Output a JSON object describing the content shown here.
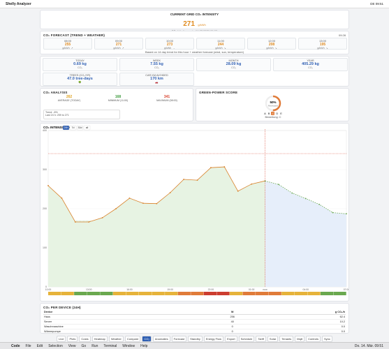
{
  "window": {
    "title": "Shelly Analyzer",
    "clock": "DE 09:51"
  },
  "header": {
    "title": "CURRENT GRID CO₂ INTENSITY",
    "value": 271,
    "unit": "g/kWh",
    "subtitle": "DE_LU · forecast · 14.03.2026 09:00"
  },
  "forecast": {
    "title": "CO₂ FORECAST (TREND + WEATHER)",
    "updated": "09:28",
    "unit": "g/kWh",
    "items": [
      {
        "time": "08:00",
        "value": 255,
        "trend": "↗"
      },
      {
        "time": "09:00",
        "value": 271,
        "trend": "↗"
      },
      {
        "time": "10:00",
        "value": 273,
        "trend": "→"
      },
      {
        "time": "11:00",
        "value": 244,
        "trend": "↘"
      },
      {
        "time": "12:00",
        "value": 208,
        "trend": "↘"
      },
      {
        "time": "13:00",
        "value": 195,
        "trend": "↘"
      }
    ],
    "note": "Based on 14 day trend for this hour + weather forecast (wind, sun, temperature)"
  },
  "stats": [
    {
      "label": "TODAY",
      "value": "0.69 kg",
      "sub": "CO₂"
    },
    {
      "label": "WEEK",
      "value": "7.55 kg",
      "sub": "CO₂"
    },
    {
      "label": "MONTH",
      "value": "28.09 kg",
      "sub": "CO₂"
    },
    {
      "label": "YEAR",
      "value": "405.29 kg",
      "sub": "CO₂"
    },
    {
      "label": "TREES (CO₂/YR)",
      "value": "47.0 tree-days",
      "sub": "🌳"
    },
    {
      "label": "CAR KM AVOIDED",
      "value": "170 km",
      "sub": "🚗"
    }
  ],
  "analysis": {
    "title": "CO₂ ANALYSIS",
    "items": [
      {
        "value": 262,
        "label": "AVERAGE (TODAY)",
        "color": "#e0a21e"
      },
      {
        "value": 168,
        "label": "MINIMUM (11:00)",
        "color": "#3c9a3c"
      },
      {
        "value": 341,
        "label": "MAXIMUM (08:00)",
        "color": "#d9442f"
      }
    ],
    "legend": [
      "Trend: -8%",
      "Last 24 h: 259 to 271"
    ]
  },
  "score": {
    "title": "GREEN-POWER SCORE",
    "value": 50,
    "value_label": "50%",
    "caption": "Renewable",
    "grades": [
      "A",
      "B",
      "C",
      "D",
      "E"
    ],
    "active": 2,
    "rating": "Bewertung: C"
  },
  "chart_data": {
    "type": "line",
    "title": "CO₂ INTENSITY DAY",
    "ranges": [
      "24h",
      "7d",
      "30d",
      "all"
    ],
    "active_range": 0,
    "categories": [
      "10:00",
      null,
      null,
      "13:00",
      null,
      null,
      "16:00",
      null,
      null,
      "19:00",
      null,
      null,
      "22:00",
      null,
      null,
      "01:00",
      "now",
      null,
      null,
      "04:00",
      null,
      null,
      "07:00"
    ],
    "series": [
      {
        "name": "Actual",
        "color": "#d9822b",
        "fill": "#e7f3e3",
        "values": [
          259,
          227,
          166,
          166,
          177,
          200,
          227,
          214,
          213,
          241,
          275,
          273,
          305,
          307,
          245,
          263,
          271,
          null,
          null,
          null,
          null,
          null,
          null
        ]
      },
      {
        "name": "Forecast",
        "color": "#6aa84f",
        "fill": "#e6eefa",
        "values": [
          null,
          null,
          null,
          null,
          null,
          null,
          null,
          null,
          null,
          null,
          null,
          null,
          null,
          null,
          null,
          null,
          271,
          262,
          240,
          226,
          211,
          190,
          187
        ]
      }
    ],
    "ylim": [
      0,
      400
    ],
    "yticks": [
      0,
      100,
      200,
      300,
      400
    ],
    "grid": true
  },
  "devices": {
    "title": "CO₂ PER DEVICE (24H)",
    "columns": [
      "Device",
      "W",
      "g CO₂/h"
    ],
    "rows": [
      [
        "Haus",
        "256",
        "62.4"
      ],
      [
        "Server",
        "40",
        "10.2"
      ],
      [
        "Waschmaschine",
        "0",
        "0.0"
      ],
      [
        "Wärmepumpe",
        "0",
        "0.0"
      ]
    ]
  },
  "nav": [
    "Live",
    "Plots",
    "Costs",
    "Heatmap",
    "Weather",
    "Compare",
    "CO₂",
    "Anomalies",
    "Forecast",
    "Standby",
    "Energy Flow",
    "Export",
    "Schedule",
    "Tariff",
    "Solar",
    "Tenants",
    "Mqtt",
    "Controls",
    "Sync"
  ],
  "menubar": {
    "app": "Code",
    "items": [
      "File",
      "Edit",
      "Selection",
      "View",
      "Go",
      "Run",
      "Terminal",
      "Window",
      "Help"
    ],
    "clock": "Do. 14. Mär. 09:51"
  }
}
